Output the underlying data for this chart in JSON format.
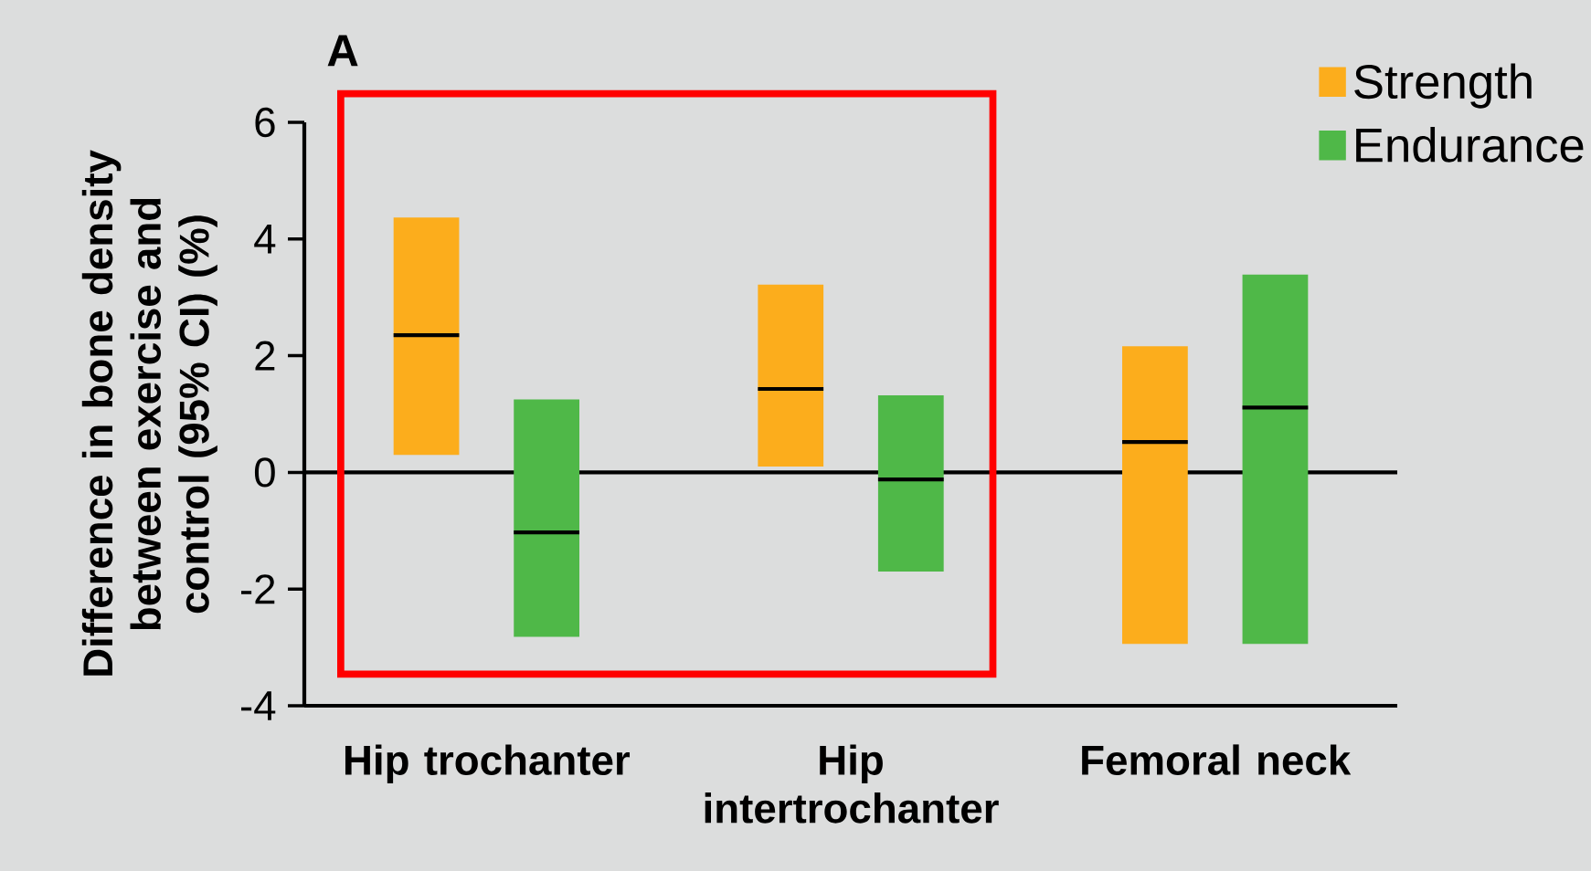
{
  "chart_data": {
    "type": "box",
    "title": "A",
    "ylabel": "Difference in bone density between exercise and control (95% CI) (%)",
    "categories": [
      "Hip trochanter",
      "Hip intertrochanter",
      "Femoral neck"
    ],
    "series": [
      {
        "name": "Strength",
        "color": "#fcad1c",
        "boxes": [
          {
            "low": 0.3,
            "q1": 0.3,
            "median": 2.35,
            "q3": 4.37,
            "high": 4.37
          },
          {
            "low": 0.1,
            "q1": 0.1,
            "median": 1.43,
            "q3": 3.22,
            "high": 3.22
          },
          {
            "low": -2.94,
            "q1": -2.94,
            "median": 0.52,
            "q3": 2.16,
            "high": 2.16
          }
        ]
      },
      {
        "name": "Endurance",
        "color": "#4fb848",
        "boxes": [
          {
            "low": -2.82,
            "q1": -2.82,
            "median": -1.03,
            "q3": 1.25,
            "high": 1.25
          },
          {
            "low": -1.7,
            "q1": -1.7,
            "median": -0.12,
            "q3": 1.32,
            "high": 1.32
          },
          {
            "low": -2.94,
            "q1": -2.94,
            "median": 1.11,
            "q3": 3.39,
            "high": 3.39
          }
        ]
      }
    ],
    "ylim": [
      -4,
      6
    ],
    "yticks": [
      -4,
      -2,
      0,
      2,
      4,
      6
    ],
    "legend": "top right",
    "ref_lines": [
      {
        "axis": "y",
        "value": 0
      }
    ]
  }
}
